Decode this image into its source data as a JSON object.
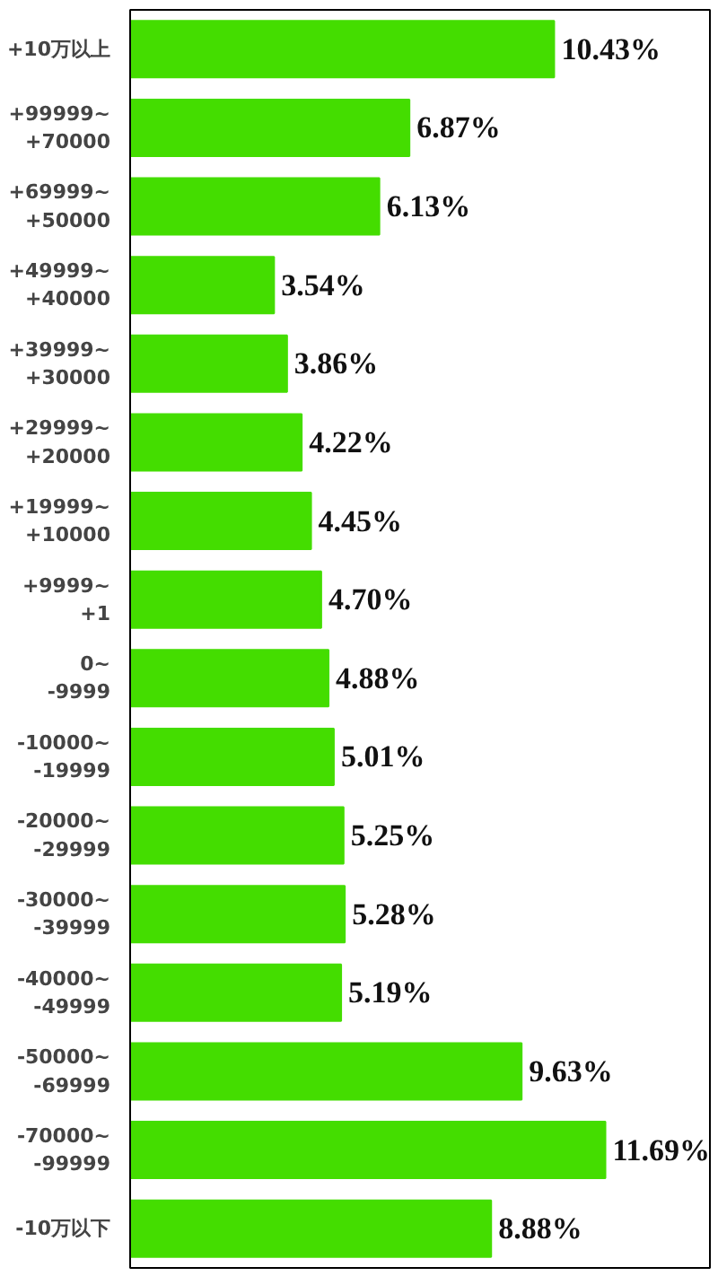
{
  "chart_data": {
    "type": "bar",
    "orientation": "horizontal",
    "categories": [
      "+10万以上",
      "+99999~\n+70000",
      "+69999~\n+50000",
      "+49999~\n+40000",
      "+39999~\n+30000",
      "+29999~\n+20000",
      "+19999~\n+10000",
      "+9999~\n+1",
      "0~\n-9999",
      "-10000~\n-19999",
      "-20000~\n-29999",
      "-30000~\n-39999",
      "-40000~\n-49999",
      "-50000~\n-69999",
      "-70000~\n-99999",
      "-10万以下"
    ],
    "values": [
      10.43,
      6.87,
      6.13,
      3.54,
      3.86,
      4.22,
      4.45,
      4.7,
      4.88,
      5.01,
      5.25,
      5.28,
      5.19,
      9.63,
      11.69,
      8.88
    ],
    "value_labels": [
      "10.43%",
      "6.87%",
      "6.13%",
      "3.54%",
      "3.86%",
      "4.22%",
      "4.45%",
      "4.70%",
      "4.88%",
      "5.01%",
      "5.25%",
      "5.28%",
      "5.19%",
      "9.63%",
      "11.69%",
      "8.88%"
    ],
    "color": "#44dd00",
    "grid": false
  }
}
